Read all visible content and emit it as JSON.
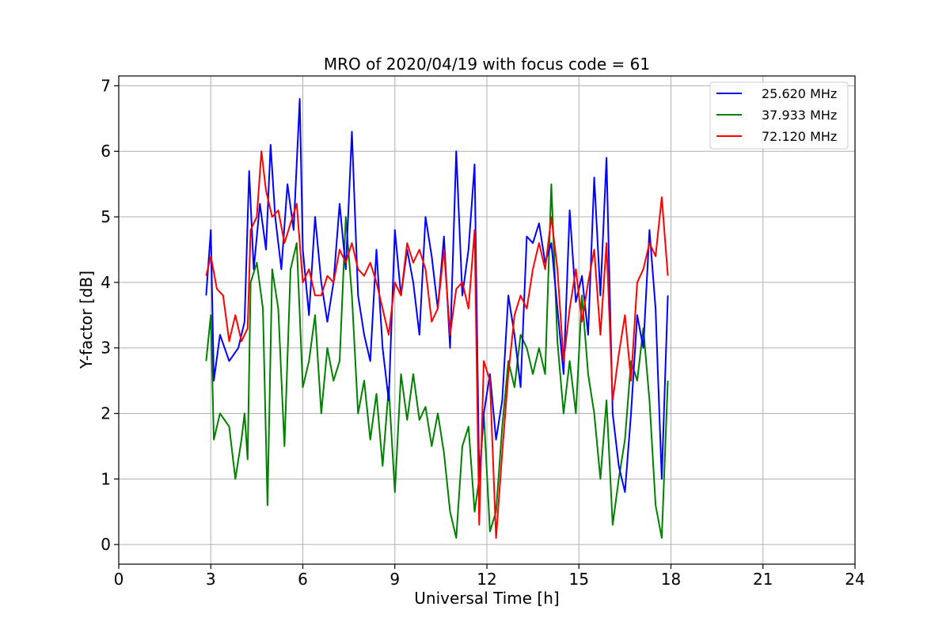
{
  "chart_data": {
    "type": "line",
    "title": "MRO of 2020/04/19 with focus code = 61",
    "xlabel": "Universal Time [h]",
    "ylabel": "Y-factor [dB]",
    "xlim": [
      0,
      24
    ],
    "ylim": [
      -0.3,
      7.15
    ],
    "xticks": [
      0,
      3,
      6,
      9,
      12,
      15,
      18,
      21,
      24
    ],
    "yticks": [
      0,
      1,
      2,
      3,
      4,
      5,
      6,
      7
    ],
    "grid": true,
    "legend_position": "top-right",
    "series": [
      {
        "name": "25.620 MHz",
        "color": "#0000ff",
        "x": [
          2.85,
          3.0,
          3.1,
          3.3,
          3.6,
          3.9,
          4.1,
          4.25,
          4.4,
          4.6,
          4.8,
          4.95,
          5.1,
          5.3,
          5.5,
          5.7,
          5.9,
          6.0,
          6.2,
          6.4,
          6.6,
          6.8,
          7.0,
          7.2,
          7.4,
          7.6,
          7.8,
          8.0,
          8.2,
          8.4,
          8.6,
          8.8,
          9.0,
          9.2,
          9.4,
          9.6,
          9.8,
          10.0,
          10.2,
          10.4,
          10.6,
          10.8,
          11.0,
          11.2,
          11.4,
          11.6,
          11.75,
          11.9,
          12.1,
          12.3,
          12.5,
          12.7,
          12.9,
          13.1,
          13.3,
          13.5,
          13.7,
          13.9,
          14.1,
          14.3,
          14.5,
          14.7,
          14.9,
          15.1,
          15.3,
          15.5,
          15.7,
          15.9,
          16.1,
          16.3,
          16.5,
          16.7,
          16.9,
          17.1,
          17.3,
          17.5,
          17.7,
          17.9
        ],
        "values": [
          3.8,
          4.8,
          2.5,
          3.2,
          2.8,
          3.0,
          3.4,
          5.7,
          4.2,
          5.2,
          4.5,
          6.1,
          5.0,
          4.2,
          5.5,
          4.8,
          6.8,
          4.5,
          3.5,
          5.0,
          4.0,
          3.4,
          4.0,
          5.2,
          4.2,
          6.3,
          3.8,
          3.2,
          2.8,
          4.5,
          3.0,
          2.2,
          4.8,
          3.8,
          4.5,
          4.0,
          3.2,
          5.0,
          4.4,
          3.6,
          4.7,
          3.0,
          6.0,
          3.8,
          4.5,
          5.8,
          1.0,
          2.0,
          2.6,
          1.6,
          2.2,
          3.8,
          3.2,
          2.4,
          4.7,
          4.6,
          4.9,
          4.3,
          4.6,
          3.6,
          2.6,
          5.1,
          3.7,
          4.1,
          3.2,
          5.6,
          3.8,
          5.9,
          2.0,
          1.2,
          0.8,
          2.0,
          3.5,
          3.0,
          4.8,
          3.6,
          1.0,
          3.8
        ]
      },
      {
        "name": "37.933 MHz",
        "color": "#008000",
        "x": [
          2.85,
          3.0,
          3.1,
          3.3,
          3.6,
          3.8,
          4.0,
          4.1,
          4.2,
          4.3,
          4.5,
          4.7,
          4.85,
          5.0,
          5.2,
          5.4,
          5.6,
          5.8,
          6.0,
          6.2,
          6.4,
          6.6,
          6.8,
          7.0,
          7.2,
          7.4,
          7.6,
          7.8,
          8.0,
          8.2,
          8.4,
          8.6,
          8.8,
          9.0,
          9.2,
          9.4,
          9.6,
          9.8,
          10.0,
          10.2,
          10.4,
          10.6,
          10.8,
          11.0,
          11.2,
          11.4,
          11.6,
          11.75,
          11.9,
          12.1,
          12.3,
          12.5,
          12.7,
          12.9,
          13.1,
          13.3,
          13.5,
          13.7,
          13.9,
          14.1,
          14.3,
          14.5,
          14.7,
          14.9,
          15.1,
          15.3,
          15.5,
          15.7,
          15.9,
          16.1,
          16.3,
          16.5,
          16.7,
          16.9,
          17.1,
          17.3,
          17.5,
          17.7,
          17.9
        ],
        "values": [
          2.8,
          3.5,
          1.6,
          2.0,
          1.8,
          1.0,
          1.6,
          2.0,
          1.3,
          4.0,
          4.3,
          3.6,
          0.6,
          4.2,
          3.6,
          1.5,
          4.2,
          4.6,
          2.4,
          2.8,
          3.5,
          2.0,
          3.0,
          2.5,
          2.8,
          5.0,
          3.8,
          2.0,
          2.5,
          1.6,
          2.3,
          1.2,
          2.4,
          0.8,
          2.6,
          1.9,
          2.6,
          1.9,
          2.1,
          1.5,
          2.0,
          1.4,
          0.5,
          0.1,
          1.5,
          1.8,
          0.5,
          1.0,
          2.0,
          0.2,
          0.5,
          1.8,
          2.8,
          2.4,
          3.2,
          3.0,
          2.6,
          3.0,
          2.6,
          5.5,
          3.1,
          2.0,
          2.8,
          2.0,
          3.8,
          2.6,
          2.0,
          1.0,
          2.2,
          0.3,
          1.0,
          1.6,
          2.8,
          2.5,
          3.3,
          2.2,
          0.6,
          0.1,
          2.5
        ]
      },
      {
        "name": "72.120 MHz",
        "color": "#ff0000",
        "x": [
          2.85,
          3.0,
          3.2,
          3.4,
          3.6,
          3.8,
          4.0,
          4.2,
          4.3,
          4.5,
          4.65,
          4.8,
          5.0,
          5.2,
          5.4,
          5.6,
          5.8,
          6.0,
          6.2,
          6.4,
          6.6,
          6.8,
          7.0,
          7.2,
          7.4,
          7.6,
          7.8,
          8.0,
          8.2,
          8.4,
          8.6,
          8.8,
          9.0,
          9.2,
          9.4,
          9.6,
          9.8,
          10.0,
          10.2,
          10.4,
          10.6,
          10.8,
          11.0,
          11.2,
          11.4,
          11.6,
          11.75,
          11.9,
          12.1,
          12.3,
          12.5,
          12.7,
          12.9,
          13.1,
          13.3,
          13.5,
          13.7,
          13.9,
          14.1,
          14.3,
          14.5,
          14.7,
          14.9,
          15.1,
          15.3,
          15.5,
          15.7,
          15.9,
          16.1,
          16.3,
          16.5,
          16.7,
          16.9,
          17.1,
          17.3,
          17.5,
          17.7,
          17.9
        ],
        "values": [
          4.1,
          4.4,
          3.9,
          3.8,
          3.1,
          3.5,
          3.1,
          3.3,
          4.8,
          5.0,
          6.0,
          5.4,
          5.0,
          5.1,
          4.6,
          4.9,
          5.2,
          4.0,
          4.2,
          3.8,
          3.8,
          4.1,
          4.0,
          4.5,
          4.3,
          4.6,
          4.2,
          4.1,
          4.3,
          4.0,
          3.6,
          3.2,
          4.0,
          3.8,
          4.6,
          4.3,
          4.5,
          4.2,
          3.4,
          3.6,
          4.5,
          3.2,
          3.9,
          4.0,
          3.6,
          4.8,
          0.3,
          2.8,
          2.5,
          0.1,
          1.4,
          2.6,
          3.5,
          3.8,
          3.6,
          4.2,
          4.6,
          4.2,
          5.0,
          4.2,
          2.8,
          3.6,
          4.2,
          3.4,
          4.0,
          4.5,
          3.2,
          4.6,
          2.2,
          2.9,
          3.5,
          2.5,
          4.0,
          4.2,
          4.6,
          4.4,
          5.3,
          4.1
        ]
      }
    ]
  }
}
